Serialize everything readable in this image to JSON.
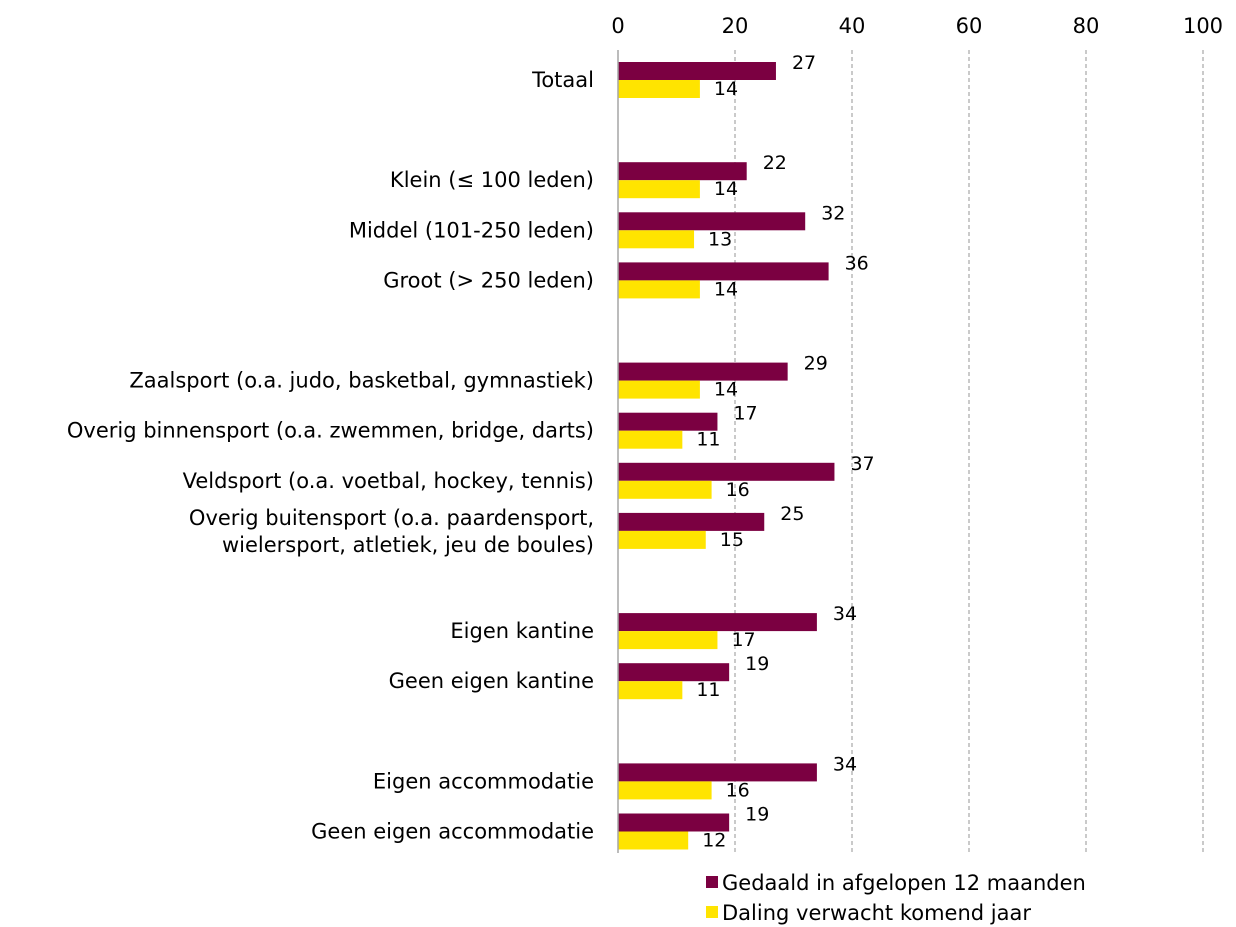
{
  "chart_data": {
    "type": "bar",
    "orientation": "horizontal",
    "title": "",
    "xlabel": "",
    "ylabel": "",
    "xlim": [
      0,
      100
    ],
    "ticks": [
      0,
      20,
      40,
      60,
      80,
      100
    ],
    "grid": "vertical-dashed",
    "legend_position": "bottom",
    "groups": [
      [
        "Totaal"
      ],
      [
        "Klein (≤ 100 leden)",
        "Middel (101-250 leden)",
        "Groot (> 250 leden)"
      ],
      [
        "Zaalsport (o.a. judo, basketbal, gymnastiek)",
        "Overig binnensport (o.a. zwemmen, bridge, darts)",
        "Veldsport (o.a. voetbal, hockey, tennis)",
        "Overig buitensport (o.a. paardensport, wielersport, atletiek, jeu de boules)"
      ],
      [
        "Eigen kantine",
        "Geen eigen kantine"
      ],
      [
        "Eigen accommodatie",
        "Geen eigen accommodatie"
      ]
    ],
    "categories": [
      "Totaal",
      "Klein (≤ 100 leden)",
      "Middel (101-250 leden)",
      "Groot (> 250 leden)",
      "Zaalsport (o.a. judo, basketbal, gymnastiek)",
      "Overig binnensport (o.a. zwemmen, bridge, darts)",
      "Veldsport (o.a. voetbal, hockey, tennis)",
      "Overig buitensport (o.a. paardensport, wielersport, atletiek, jeu de boules)",
      "Eigen kantine",
      "Geen eigen kantine",
      "Eigen accommodatie",
      "Geen eigen accommodatie"
    ],
    "category_lines": [
      [
        "Totaal"
      ],
      [
        "Klein (≤ 100 leden)"
      ],
      [
        "Middel (101-250 leden)"
      ],
      [
        "Groot (> 250 leden)"
      ],
      [
        "Zaalsport (o.a. judo, basketbal, gymnastiek)"
      ],
      [
        "Overig binnensport (o.a. zwemmen, bridge, darts)"
      ],
      [
        "Veldsport (o.a. voetbal, hockey, tennis)"
      ],
      [
        "Overig buitensport (o.a. paardensport,",
        "wielersport, atletiek, jeu de boules)"
      ],
      [
        "Eigen kantine"
      ],
      [
        "Geen eigen kantine"
      ],
      [
        "Eigen accommodatie"
      ],
      [
        "Geen eigen accommodatie"
      ]
    ],
    "series": [
      {
        "name": "Gedaald in afgelopen 12 maanden",
        "color": "#7b0041",
        "values": [
          27,
          22,
          32,
          36,
          29,
          17,
          37,
          25,
          34,
          19,
          34,
          19
        ]
      },
      {
        "name": "Daling verwacht komend jaar",
        "color": "#ffe400",
        "values": [
          14,
          14,
          13,
          14,
          14,
          11,
          16,
          15,
          17,
          11,
          16,
          12
        ]
      }
    ]
  }
}
